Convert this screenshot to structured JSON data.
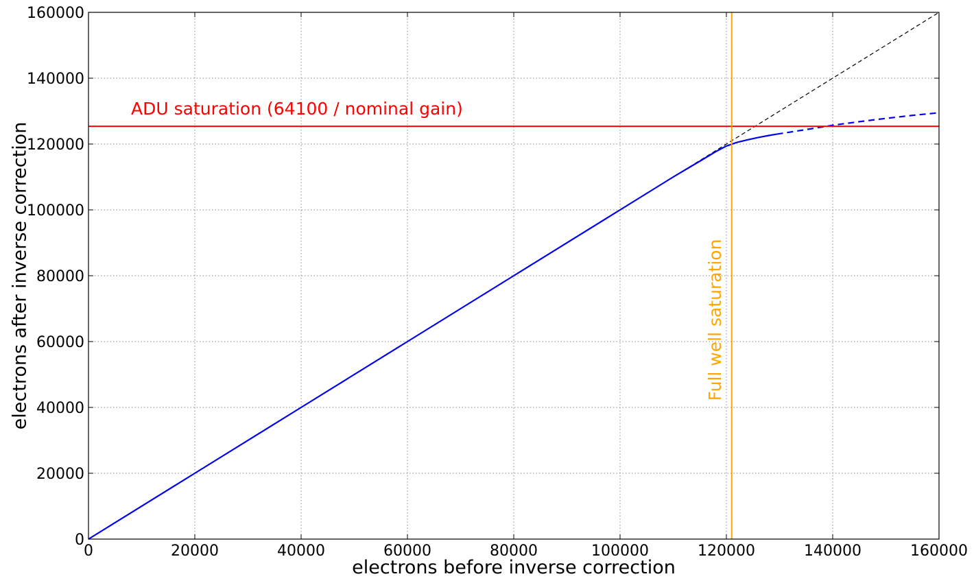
{
  "chart_data": {
    "type": "line",
    "xlabel": "electrons before inverse correction",
    "ylabel": "electrons after inverse correction",
    "xlim": [
      0,
      160000
    ],
    "ylim": [
      0,
      160000
    ],
    "xticks": [
      "0",
      "20000",
      "40000",
      "60000",
      "80000",
      "100000",
      "120000",
      "140000",
      "160000"
    ],
    "yticks": [
      "0",
      "20000",
      "40000",
      "60000",
      "80000",
      "100000",
      "120000",
      "140000",
      "160000"
    ],
    "grid": true,
    "series": [
      {
        "style": "dashed",
        "color": "#000000",
        "x": [
          0,
          160000
        ],
        "y": [
          0,
          160000
        ]
      },
      {
        "style": "solid",
        "color": "#0000ee",
        "x": [
          0,
          20000,
          40000,
          60000,
          80000,
          100000,
          110000,
          115000,
          118000,
          120000,
          122000,
          124000,
          126000,
          128000,
          129500
        ],
        "y": [
          0,
          20000,
          40000,
          60000,
          80000,
          100000,
          110000,
          114800,
          117700,
          119400,
          120500,
          121300,
          122000,
          122600,
          123000
        ]
      },
      {
        "style": "dashed",
        "color": "#0000ee",
        "x": [
          129500,
          135000,
          140000,
          145000,
          150000,
          155000,
          160000
        ],
        "y": [
          123000,
          124400,
          125700,
          126800,
          127800,
          128700,
          129500
        ]
      }
    ],
    "annotations": [
      {
        "id": "adu",
        "type": "hline",
        "value": 125400,
        "color": "#ff0000",
        "text": "ADU saturation (64100 / nominal gain)",
        "text_x": 8000,
        "text_y": 129000
      },
      {
        "id": "fullwell",
        "type": "vline",
        "value": 121000,
        "color": "#ffa500",
        "text": "Full well saturation",
        "text_x": 119000,
        "text_y": 42000
      }
    ]
  }
}
